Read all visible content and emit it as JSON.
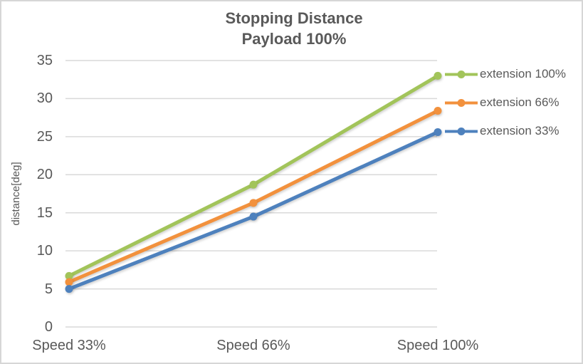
{
  "style": {
    "background": "#FFFFFF",
    "border_color": "#D6D6D6",
    "text_color": "#595959",
    "gridline_color": "#D9D9D9"
  },
  "chart_data": {
    "type": "line",
    "title": "Stopping Distance",
    "subtitle": "Payload 100%",
    "categories": [
      "Speed 33%",
      "Speed 66%",
      "Speed 100%"
    ],
    "series": [
      {
        "name": "extension 100%",
        "color": "#A2C45A",
        "values": [
          6.7,
          18.7,
          33.0
        ]
      },
      {
        "name": "extension 66%",
        "color": "#F2913D",
        "values": [
          5.9,
          16.3,
          28.4
        ]
      },
      {
        "name": "extension 33%",
        "color": "#4E81BD",
        "values": [
          5.0,
          14.5,
          25.6
        ]
      }
    ],
    "xlabel": "",
    "ylabel": "distance[deg]",
    "ylim": [
      0,
      35
    ],
    "yticks": [
      0,
      5,
      10,
      15,
      20,
      25,
      30,
      35
    ],
    "grid": true,
    "legend_position": "right",
    "markers": "circle"
  }
}
